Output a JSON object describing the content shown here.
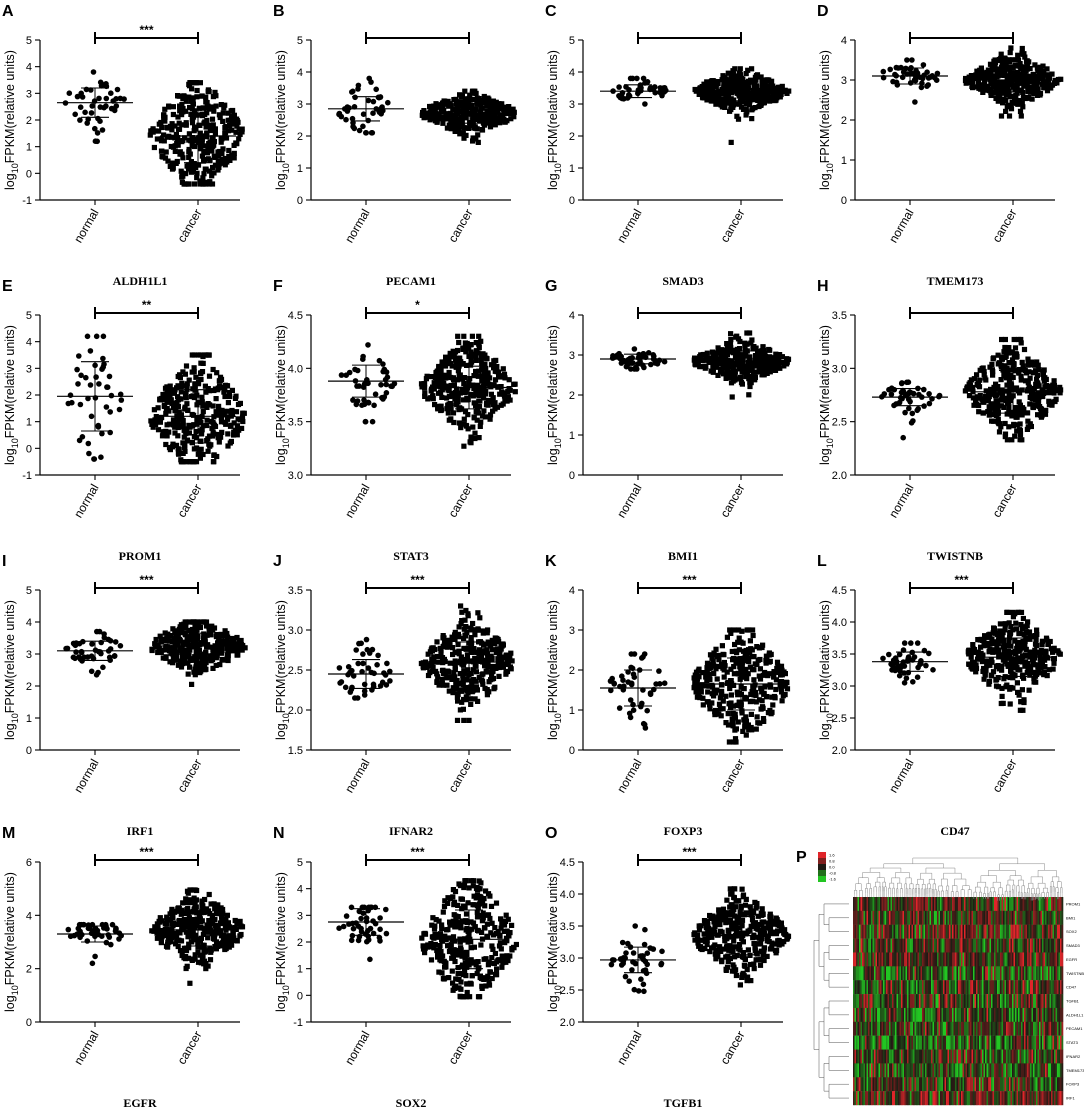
{
  "chart_data": [
    {
      "panel": "A",
      "type": "scatter",
      "gene": "ALDH1L1",
      "ylabel": "log10FPKM(relative units)",
      "categories": [
        "normal",
        "cancer"
      ],
      "ylim": [
        -1,
        5
      ],
      "yticks": [
        -1,
        0,
        1,
        2,
        3,
        4,
        5
      ],
      "significance": "***",
      "normal": {
        "mean": 2.65,
        "sd": 0.55,
        "min": 1.2,
        "max": 3.8
      },
      "cancer": {
        "mean": 1.4,
        "sd": 1.0,
        "min": -0.4,
        "max": 3.4
      }
    },
    {
      "panel": "B",
      "type": "scatter",
      "gene": "PECAM1",
      "ylabel": "log10FPKM(relative units)",
      "categories": [
        "normal",
        "cancer"
      ],
      "ylim": [
        0,
        5
      ],
      "yticks": [
        0,
        1,
        2,
        3,
        4,
        5
      ],
      "significance": "",
      "normal": {
        "mean": 2.85,
        "sd": 0.38,
        "min": 2.1,
        "max": 3.8
      },
      "cancer": {
        "mean": 2.7,
        "sd": 0.3,
        "min": 1.8,
        "max": 3.4
      }
    },
    {
      "panel": "C",
      "type": "scatter",
      "gene": "SMAD3",
      "ylabel": "log10FPKM(relative units)",
      "categories": [
        "normal",
        "cancer"
      ],
      "ylim": [
        0,
        5
      ],
      "yticks": [
        0,
        1,
        2,
        3,
        4,
        5
      ],
      "significance": "",
      "normal": {
        "mean": 3.4,
        "sd": 0.2,
        "min": 3.0,
        "max": 3.8
      },
      "cancer": {
        "mean": 3.4,
        "sd": 0.3,
        "min": 1.8,
        "max": 4.1
      }
    },
    {
      "panel": "D",
      "type": "scatter",
      "gene": "TMEM173",
      "ylabel": "log10FPKM(relative units)",
      "categories": [
        "normal",
        "cancer"
      ],
      "ylim": [
        0,
        4
      ],
      "yticks": [
        0,
        1,
        2,
        3,
        4
      ],
      "significance": "",
      "normal": {
        "mean": 3.1,
        "sd": 0.2,
        "min": 2.45,
        "max": 3.5
      },
      "cancer": {
        "mean": 3.0,
        "sd": 0.3,
        "min": 2.1,
        "max": 3.8
      }
    },
    {
      "panel": "E",
      "type": "scatter",
      "gene": "PROM1",
      "ylabel": "log10FPKM(relative units)",
      "categories": [
        "normal",
        "cancer"
      ],
      "ylim": [
        -1,
        5
      ],
      "yticks": [
        -1,
        0,
        1,
        2,
        3,
        4,
        5
      ],
      "significance": "**",
      "normal": {
        "mean": 1.95,
        "sd": 1.3,
        "min": -0.4,
        "max": 4.2
      },
      "cancer": {
        "mean": 1.2,
        "sd": 1.0,
        "min": -0.5,
        "max": 3.5
      }
    },
    {
      "panel": "F",
      "type": "scatter",
      "gene": "STAT3",
      "ylabel": "log10FPKM(relative units)",
      "categories": [
        "normal",
        "cancer"
      ],
      "ylim": [
        3.0,
        4.5
      ],
      "yticks": [
        3.0,
        3.5,
        4.0,
        4.5
      ],
      "significance": "*",
      "normal": {
        "mean": 3.88,
        "sd": 0.15,
        "min": 3.5,
        "max": 4.22
      },
      "cancer": {
        "mean": 3.82,
        "sd": 0.2,
        "min": 3.27,
        "max": 4.3
      }
    },
    {
      "panel": "G",
      "type": "scatter",
      "gene": "BMI1",
      "ylabel": "log10FPKM(relative units)",
      "categories": [
        "normal",
        "cancer"
      ],
      "ylim": [
        0,
        4
      ],
      "yticks": [
        0,
        1,
        2,
        3,
        4
      ],
      "significance": "",
      "normal": {
        "mean": 2.9,
        "sd": 0.12,
        "min": 2.65,
        "max": 3.15
      },
      "cancer": {
        "mean": 2.85,
        "sd": 0.25,
        "min": 1.95,
        "max": 3.55
      }
    },
    {
      "panel": "H",
      "type": "scatter",
      "gene": "TWISTNB",
      "ylabel": "log10FPKM(relative units)",
      "categories": [
        "normal",
        "cancer"
      ],
      "ylim": [
        2.0,
        3.5
      ],
      "yticks": [
        2.0,
        2.5,
        3.0,
        3.5
      ],
      "significance": "",
      "normal": {
        "mean": 2.73,
        "sd": 0.08,
        "min": 2.35,
        "max": 2.87
      },
      "cancer": {
        "mean": 2.78,
        "sd": 0.2,
        "min": 2.33,
        "max": 3.27
      }
    },
    {
      "panel": "I",
      "type": "scatter",
      "gene": "IRF1",
      "ylabel": "log10FPKM(relative units)",
      "categories": [
        "normal",
        "cancer"
      ],
      "ylim": [
        0,
        5
      ],
      "yticks": [
        0,
        1,
        2,
        3,
        4,
        5
      ],
      "significance": "***",
      "normal": {
        "mean": 3.1,
        "sd": 0.3,
        "min": 2.35,
        "max": 3.7
      },
      "cancer": {
        "mean": 3.25,
        "sd": 0.4,
        "min": 2.05,
        "max": 4.0
      }
    },
    {
      "panel": "J",
      "type": "scatter",
      "gene": "IFNAR2",
      "ylabel": "log10FPKM(relative units)",
      "categories": [
        "normal",
        "cancer"
      ],
      "ylim": [
        1.5,
        3.5
      ],
      "yticks": [
        1.5,
        2.0,
        2.5,
        3.0,
        3.5
      ],
      "significance": "***",
      "normal": {
        "mean": 2.45,
        "sd": 0.18,
        "min": 2.15,
        "max": 2.88
      },
      "cancer": {
        "mean": 2.6,
        "sd": 0.25,
        "min": 1.87,
        "max": 3.3
      }
    },
    {
      "panel": "K",
      "type": "scatter",
      "gene": "FOXP3",
      "ylabel": "log10FPKM(relative units)",
      "categories": [
        "normal",
        "cancer"
      ],
      "ylim": [
        0,
        4
      ],
      "yticks": [
        0,
        1,
        2,
        3,
        4
      ],
      "significance": "***",
      "normal": {
        "mean": 1.55,
        "sd": 0.45,
        "min": 0.55,
        "max": 2.4
      },
      "cancer": {
        "mean": 1.65,
        "sd": 0.65,
        "min": 0.2,
        "max": 3.0
      }
    },
    {
      "panel": "L",
      "type": "scatter",
      "gene": "CD47",
      "ylabel": "log10FPKM(relative units)",
      "categories": [
        "normal",
        "cancer"
      ],
      "ylim": [
        2.0,
        4.5
      ],
      "yticks": [
        2.0,
        2.5,
        3.0,
        3.5,
        4.0,
        4.5
      ],
      "significance": "***",
      "normal": {
        "mean": 3.38,
        "sd": 0.15,
        "min": 3.05,
        "max": 3.67
      },
      "cancer": {
        "mean": 3.45,
        "sd": 0.3,
        "min": 2.62,
        "max": 4.15
      }
    },
    {
      "panel": "M",
      "type": "scatter",
      "gene": "EGFR",
      "ylabel": "log10FPKM(relative units)",
      "categories": [
        "normal",
        "cancer"
      ],
      "ylim": [
        0,
        6
      ],
      "yticks": [
        0,
        2,
        4,
        6
      ],
      "significance": "***",
      "normal": {
        "mean": 3.3,
        "sd": 0.3,
        "min": 2.2,
        "max": 3.65
      },
      "cancer": {
        "mean": 3.45,
        "sd": 0.6,
        "min": 1.45,
        "max": 4.95
      }
    },
    {
      "panel": "N",
      "type": "scatter",
      "gene": "SOX2",
      "ylabel": "log10FPKM(relative units)",
      "categories": [
        "normal",
        "cancer"
      ],
      "ylim": [
        -1,
        5
      ],
      "yticks": [
        -1,
        0,
        1,
        2,
        3,
        4,
        5
      ],
      "significance": "***",
      "normal": {
        "mean": 2.75,
        "sd": 0.5,
        "min": 1.35,
        "max": 3.3
      },
      "cancer": {
        "mean": 2.1,
        "sd": 1.1,
        "min": -0.05,
        "max": 4.3
      }
    },
    {
      "panel": "O",
      "type": "scatter",
      "gene": "TGFB1",
      "ylabel": "log10FPKM(relative units)",
      "categories": [
        "normal",
        "cancer"
      ],
      "ylim": [
        2.0,
        4.5
      ],
      "yticks": [
        2.0,
        2.5,
        3.0,
        3.5,
        4.0,
        4.5
      ],
      "significance": "***",
      "normal": {
        "mean": 2.97,
        "sd": 0.2,
        "min": 2.48,
        "max": 3.5
      },
      "cancer": {
        "mean": 3.35,
        "sd": 0.3,
        "min": 2.58,
        "max": 4.08
      }
    },
    {
      "panel": "P",
      "type": "heatmap",
      "legend_values": [
        "1.6",
        "0.8",
        "0.0",
        "-0.8",
        "-1.6"
      ],
      "rows": [
        "PROM1",
        "BMI1",
        "SOX2",
        "SMAD3",
        "EGFR",
        "TWISTNB",
        "CD47",
        "TGFB1",
        "ALDH1L1",
        "PECAM1",
        "STAT3",
        "IFNAR2",
        "TMEM173",
        "FOXP3",
        "IRF1"
      ],
      "colors": {
        "high": "#e0252a",
        "mid": "#1f1a14",
        "low": "#22c522"
      }
    }
  ]
}
